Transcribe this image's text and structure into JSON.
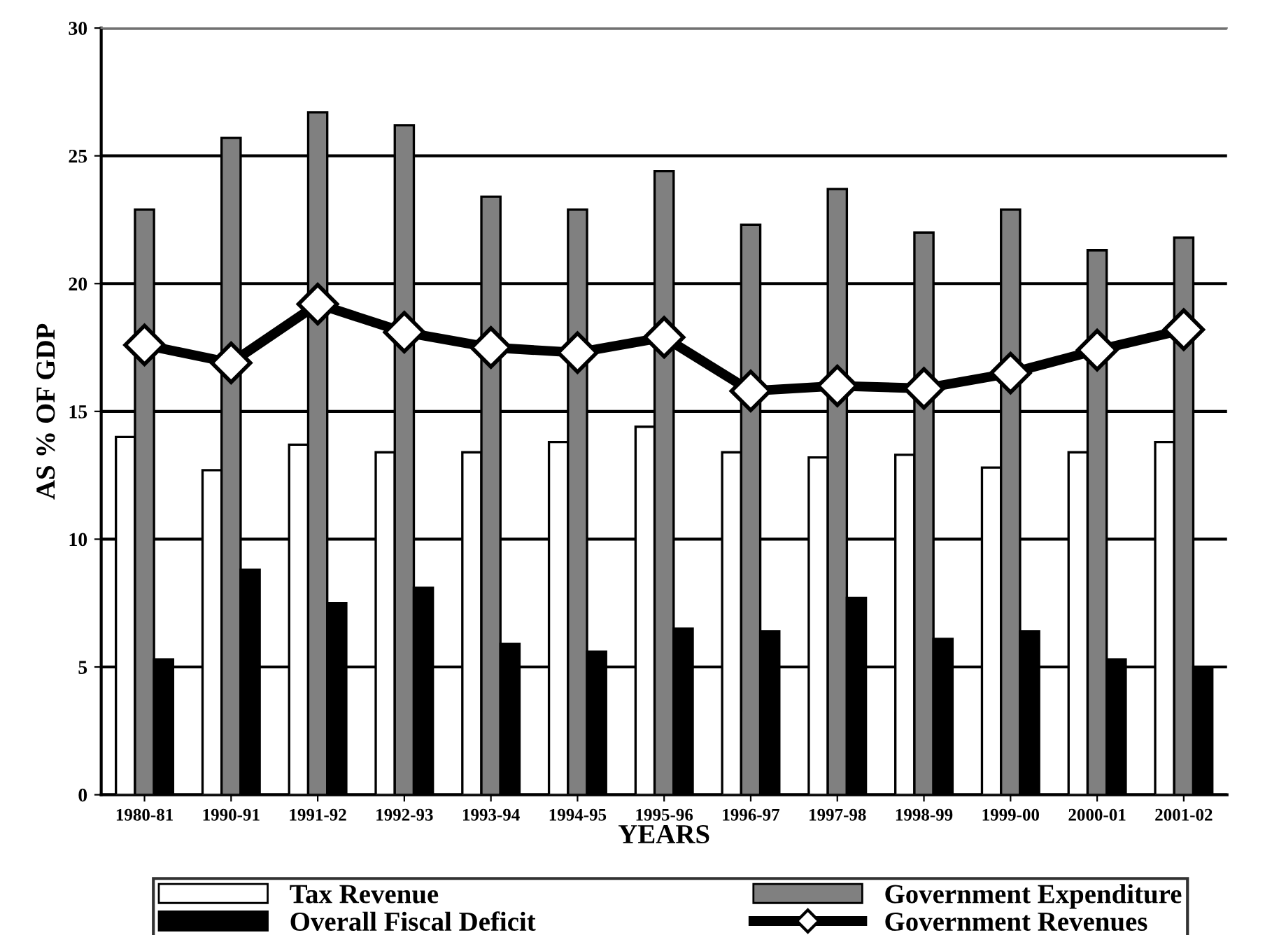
{
  "chart_data": {
    "type": "bar",
    "xlabel": "YEARS",
    "ylabel": "AS % OF GDP",
    "categories": [
      "1980-81",
      "1990-91",
      "1991-92",
      "1992-93",
      "1993-94",
      "1994-95",
      "1995-96",
      "1996-97",
      "1997-98",
      "1998-99",
      "1999-00",
      "2000-01",
      "2001-02"
    ],
    "series": [
      {
        "name": "Tax Revenue",
        "color": "#ffffff",
        "values": [
          14.0,
          12.7,
          13.7,
          13.4,
          13.4,
          13.8,
          14.4,
          13.4,
          13.2,
          13.3,
          12.8,
          13.4,
          13.8
        ]
      },
      {
        "name": "Government Expenditure",
        "color": "#808080",
        "values": [
          22.9,
          25.7,
          26.7,
          26.2,
          23.4,
          22.9,
          24.4,
          22.3,
          23.7,
          22.0,
          22.9,
          21.3,
          21.8
        ]
      },
      {
        "name": "Overall Fiscal Deficit",
        "color": "#000000",
        "values": [
          5.3,
          8.8,
          7.5,
          8.1,
          5.9,
          5.6,
          6.5,
          6.4,
          7.7,
          6.1,
          6.4,
          5.3,
          5.0
        ]
      },
      {
        "name": "Government Revenues",
        "type": "line",
        "color": "#000000",
        "marker": "diamond",
        "values": [
          17.6,
          16.9,
          19.2,
          18.1,
          17.5,
          17.3,
          17.9,
          15.8,
          16.0,
          15.9,
          16.5,
          17.4,
          18.2
        ]
      }
    ],
    "ylim": [
      0,
      30
    ],
    "yticks": [
      0,
      5,
      10,
      15,
      20,
      25,
      30
    ],
    "grid": "y",
    "legend": "bottom"
  }
}
